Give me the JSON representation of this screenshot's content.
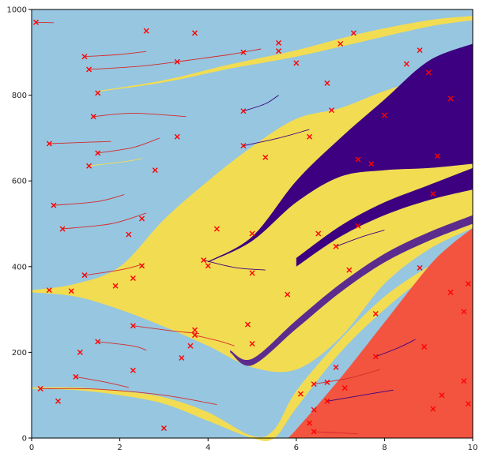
{
  "chart_data": {
    "type": "area",
    "title": "",
    "xlabel": "",
    "ylabel": "",
    "xlim": [
      0,
      10
    ],
    "ylim": [
      0,
      1000
    ],
    "x_ticks": [
      0,
      2,
      4,
      6,
      8,
      10
    ],
    "y_ticks": [
      0,
      200,
      400,
      600,
      800,
      1000
    ],
    "grid": false,
    "legend": "none",
    "colors": {
      "background": "#96c6e0",
      "yellow": "#f2dc52",
      "light_yellow": "#efe574",
      "purple": "#3c0080",
      "mid_purple": "#5b2c8e",
      "red": "#f25440",
      "trail_red": "#d42b2b",
      "marker": "#ff0000"
    },
    "bands": [
      {
        "name": "upper-yellow-wedge",
        "color": "#f2dc52",
        "x": [
          1.5,
          3,
          4.5,
          6,
          7.5,
          9,
          10
        ],
        "low": [
          808,
          830,
          862,
          890,
          925,
          960,
          975
        ],
        "high": [
          810,
          835,
          872,
          905,
          945,
          975,
          985
        ]
      },
      {
        "name": "main-yellow-band",
        "color": "#f2dc52",
        "x": [
          0,
          1,
          2,
          3,
          4,
          5,
          6,
          7,
          8,
          9,
          10
        ],
        "low": [
          340,
          330,
          300,
          260,
          215,
          165,
          160,
          235,
          360,
          440,
          490
        ],
        "high": [
          345,
          360,
          400,
          510,
          600,
          680,
          745,
          770,
          810,
          840,
          855
        ]
      },
      {
        "name": "purple-upper-band",
        "color": "#3c0080",
        "x": [
          4,
          5,
          6,
          7,
          8,
          9,
          10
        ],
        "low": [
          410,
          460,
          550,
          610,
          625,
          630,
          640
        ],
        "high": [
          412,
          470,
          600,
          700,
          790,
          880,
          920
        ]
      },
      {
        "name": "purple-middle-band",
        "color": "#3c0080",
        "x": [
          6,
          7,
          8,
          9,
          10
        ],
        "low": [
          400,
          470,
          520,
          555,
          580
        ],
        "high": [
          420,
          495,
          550,
          590,
          630
        ]
      },
      {
        "name": "purple-lower-band",
        "color": "#5b2c8e",
        "x": [
          4.5,
          5,
          6,
          7,
          8,
          9,
          10
        ],
        "low": [
          200,
          170,
          255,
          340,
          410,
          460,
          500
        ],
        "high": [
          205,
          185,
          275,
          360,
          430,
          480,
          520
        ]
      },
      {
        "name": "bottom-yellow-band",
        "color": "#f2dc52",
        "x": [
          0,
          1,
          2,
          3,
          4,
          5,
          5.5,
          6,
          7,
          8,
          9,
          10
        ],
        "low": [
          115,
          112,
          100,
          80,
          40,
          0,
          0,
          70,
          200,
          300,
          380,
          430
        ],
        "high": [
          118,
          118,
          110,
          95,
          60,
          5,
          20,
          110,
          230,
          330,
          400,
          450
        ]
      },
      {
        "name": "red-region",
        "color": "#f25440",
        "x": [
          5.8,
          6,
          7,
          8,
          9,
          9.5,
          10
        ],
        "low": [
          0,
          0,
          0,
          0,
          0,
          0,
          0
        ],
        "high": [
          0,
          20,
          140,
          270,
          400,
          450,
          490
        ]
      }
    ],
    "markers": [
      {
        "x": 0.1,
        "y": 970
      },
      {
        "x": 2.6,
        "y": 950
      },
      {
        "x": 3.7,
        "y": 945
      },
      {
        "x": 7.3,
        "y": 945
      },
      {
        "x": 7.0,
        "y": 920
      },
      {
        "x": 5.6,
        "y": 922
      },
      {
        "x": 8.8,
        "y": 905
      },
      {
        "x": 5.6,
        "y": 903
      },
      {
        "x": 4.8,
        "y": 900
      },
      {
        "x": 1.2,
        "y": 890
      },
      {
        "x": 3.3,
        "y": 878
      },
      {
        "x": 6.0,
        "y": 875
      },
      {
        "x": 8.5,
        "y": 873
      },
      {
        "x": 1.3,
        "y": 860
      },
      {
        "x": 9.0,
        "y": 853
      },
      {
        "x": 6.7,
        "y": 828
      },
      {
        "x": 1.5,
        "y": 805
      },
      {
        "x": 9.5,
        "y": 792
      },
      {
        "x": 6.8,
        "y": 765
      },
      {
        "x": 4.8,
        "y": 763
      },
      {
        "x": 8.0,
        "y": 753
      },
      {
        "x": 1.4,
        "y": 750
      },
      {
        "x": 3.3,
        "y": 703
      },
      {
        "x": 6.3,
        "y": 703
      },
      {
        "x": 0.4,
        "y": 687
      },
      {
        "x": 4.8,
        "y": 682
      },
      {
        "x": 1.5,
        "y": 665
      },
      {
        "x": 9.2,
        "y": 658
      },
      {
        "x": 5.3,
        "y": 655
      },
      {
        "x": 7.4,
        "y": 650
      },
      {
        "x": 7.7,
        "y": 640
      },
      {
        "x": 1.3,
        "y": 635
      },
      {
        "x": 2.8,
        "y": 625
      },
      {
        "x": 9.1,
        "y": 570
      },
      {
        "x": 0.5,
        "y": 543
      },
      {
        "x": 2.5,
        "y": 512
      },
      {
        "x": 7.4,
        "y": 495
      },
      {
        "x": 0.7,
        "y": 488
      },
      {
        "x": 4.2,
        "y": 488
      },
      {
        "x": 5.0,
        "y": 477
      },
      {
        "x": 6.5,
        "y": 477
      },
      {
        "x": 2.2,
        "y": 475
      },
      {
        "x": 6.9,
        "y": 447
      },
      {
        "x": 3.9,
        "y": 415
      },
      {
        "x": 4.0,
        "y": 402
      },
      {
        "x": 2.5,
        "y": 402
      },
      {
        "x": 8.8,
        "y": 397
      },
      {
        "x": 7.2,
        "y": 392
      },
      {
        "x": 5.0,
        "y": 385
      },
      {
        "x": 1.2,
        "y": 380
      },
      {
        "x": 2.3,
        "y": 373
      },
      {
        "x": 9.9,
        "y": 360
      },
      {
        "x": 1.9,
        "y": 355
      },
      {
        "x": 0.4,
        "y": 345
      },
      {
        "x": 0.9,
        "y": 343
      },
      {
        "x": 9.5,
        "y": 340
      },
      {
        "x": 5.8,
        "y": 335
      },
      {
        "x": 9.8,
        "y": 295
      },
      {
        "x": 7.8,
        "y": 290
      },
      {
        "x": 4.9,
        "y": 265
      },
      {
        "x": 2.3,
        "y": 262
      },
      {
        "x": 3.7,
        "y": 252
      },
      {
        "x": 3.7,
        "y": 240
      },
      {
        "x": 1.5,
        "y": 225
      },
      {
        "x": 5.0,
        "y": 220
      },
      {
        "x": 3.6,
        "y": 215
      },
      {
        "x": 8.9,
        "y": 213
      },
      {
        "x": 1.1,
        "y": 200
      },
      {
        "x": 7.8,
        "y": 190
      },
      {
        "x": 3.4,
        "y": 187
      },
      {
        "x": 6.9,
        "y": 165
      },
      {
        "x": 2.3,
        "y": 158
      },
      {
        "x": 1.0,
        "y": 143
      },
      {
        "x": 9.8,
        "y": 133
      },
      {
        "x": 6.7,
        "y": 130
      },
      {
        "x": 6.4,
        "y": 126
      },
      {
        "x": 7.1,
        "y": 117
      },
      {
        "x": 0.2,
        "y": 115
      },
      {
        "x": 6.1,
        "y": 103
      },
      {
        "x": 9.3,
        "y": 100
      },
      {
        "x": 0.6,
        "y": 86
      },
      {
        "x": 6.7,
        "y": 86
      },
      {
        "x": 9.9,
        "y": 80
      },
      {
        "x": 9.1,
        "y": 68
      },
      {
        "x": 6.4,
        "y": 66
      },
      {
        "x": 6.3,
        "y": 35
      },
      {
        "x": 3.0,
        "y": 23
      },
      {
        "x": 6.4,
        "y": 15
      }
    ],
    "trails": [
      {
        "color": "#d42b2b",
        "points": [
          [
            0.1,
            970
          ],
          [
            0.5,
            969
          ]
        ]
      },
      {
        "color": "#d42b2b",
        "points": [
          [
            1.2,
            890
          ],
          [
            2.0,
            895
          ],
          [
            2.6,
            902
          ]
        ]
      },
      {
        "color": "#d42b2b",
        "points": [
          [
            1.3,
            860
          ],
          [
            2.5,
            868
          ],
          [
            3.6,
            882
          ]
        ]
      },
      {
        "color": "#d42b2b",
        "points": [
          [
            3.3,
            878
          ],
          [
            4.5,
            895
          ],
          [
            5.2,
            908
          ]
        ]
      },
      {
        "color": "#d42b2b",
        "points": [
          [
            1.4,
            750
          ],
          [
            2.3,
            758
          ],
          [
            3.5,
            750
          ]
        ]
      },
      {
        "color": "#d42b2b",
        "points": [
          [
            0.4,
            687
          ],
          [
            1.2,
            690
          ],
          [
            1.8,
            692
          ]
        ]
      },
      {
        "color": "#d42b2b",
        "points": [
          [
            1.5,
            665
          ],
          [
            2.3,
            678
          ],
          [
            2.9,
            700
          ]
        ]
      },
      {
        "color": "#d42b2b",
        "points": [
          [
            0.5,
            543
          ],
          [
            1.5,
            552
          ],
          [
            2.1,
            568
          ]
        ]
      },
      {
        "color": "#d42b2b",
        "points": [
          [
            0.7,
            488
          ],
          [
            1.8,
            500
          ],
          [
            2.6,
            525
          ]
        ]
      },
      {
        "color": "#d42b2b",
        "points": [
          [
            1.2,
            380
          ],
          [
            2.0,
            392
          ],
          [
            2.5,
            405
          ]
        ]
      },
      {
        "color": "#d42b2b",
        "points": [
          [
            1.5,
            225
          ],
          [
            2.3,
            215
          ],
          [
            2.6,
            205
          ]
        ]
      },
      {
        "color": "#d42b2b",
        "points": [
          [
            2.3,
            262
          ],
          [
            3.2,
            250
          ],
          [
            3.8,
            244
          ]
        ]
      },
      {
        "color": "#d42b2b",
        "points": [
          [
            0.2,
            115
          ],
          [
            1.5,
            114
          ],
          [
            3.0,
            100
          ],
          [
            4.2,
            78
          ]
        ]
      },
      {
        "color": "#d42b2b",
        "points": [
          [
            1.0,
            143
          ],
          [
            1.7,
            130
          ],
          [
            2.2,
            118
          ]
        ]
      },
      {
        "color": "#d42b2b",
        "points": [
          [
            3.7,
            240
          ],
          [
            4.3,
            225
          ],
          [
            4.6,
            215
          ]
        ]
      },
      {
        "color": "#d42b2b",
        "points": [
          [
            6.4,
            15
          ],
          [
            7.0,
            12
          ],
          [
            7.4,
            10
          ]
        ]
      },
      {
        "color": "#d42b2b",
        "points": [
          [
            6.4,
            126
          ],
          [
            7.2,
            140
          ],
          [
            7.9,
            160
          ]
        ]
      },
      {
        "color": "#f2dc52",
        "points": [
          [
            1.3,
            635
          ],
          [
            2.1,
            645
          ],
          [
            2.5,
            652
          ]
        ]
      },
      {
        "color": "#f2dc52",
        "points": [
          [
            1.9,
            355
          ],
          [
            2.6,
            370
          ],
          [
            3.3,
            378
          ]
        ]
      },
      {
        "color": "#3c0080",
        "points": [
          [
            4.8,
            682
          ],
          [
            5.6,
            700
          ],
          [
            6.3,
            720
          ]
        ]
      },
      {
        "color": "#3c0080",
        "points": [
          [
            4.8,
            763
          ],
          [
            5.3,
            780
          ],
          [
            5.6,
            800
          ]
        ]
      },
      {
        "color": "#3c0080",
        "points": [
          [
            3.9,
            415
          ],
          [
            4.6,
            398
          ],
          [
            5.3,
            392
          ]
        ]
      },
      {
        "color": "#3c0080",
        "points": [
          [
            6.9,
            447
          ],
          [
            7.5,
            470
          ],
          [
            8.0,
            485
          ]
        ]
      },
      {
        "color": "#3c0080",
        "points": [
          [
            6.7,
            86
          ],
          [
            7.5,
            100
          ],
          [
            8.2,
            112
          ]
        ]
      },
      {
        "color": "#3c0080",
        "points": [
          [
            7.8,
            190
          ],
          [
            8.3,
            210
          ],
          [
            8.7,
            230
          ]
        ]
      }
    ]
  }
}
